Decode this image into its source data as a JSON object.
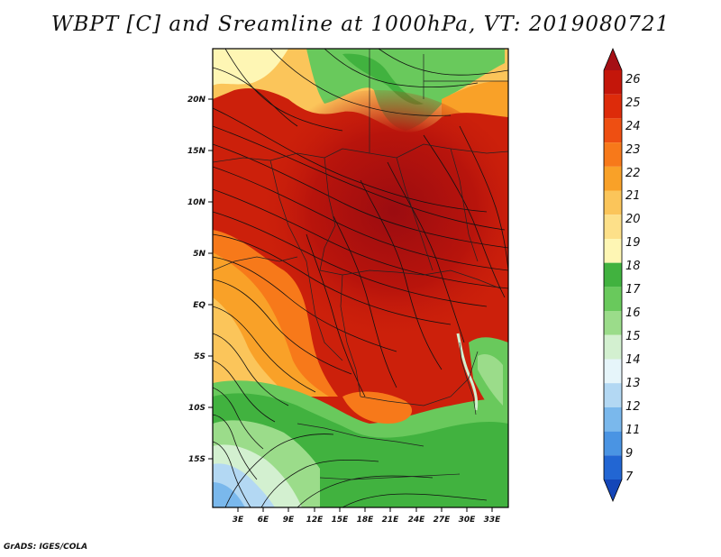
{
  "title": "WBPT [C] and Sreamline at 1000hPa, VT: 2019080721",
  "footer": "GrADS: IGES/COLA",
  "map": {
    "lat_labels": [
      "20N",
      "15N",
      "10N",
      "5N",
      "EQ",
      "5S",
      "10S",
      "15S"
    ],
    "lon_labels": [
      "3E",
      "6E",
      "9E",
      "12E",
      "15E",
      "18E",
      "21E",
      "24E",
      "27E",
      "30E",
      "33E"
    ]
  },
  "colorbar": {
    "labels": [
      "26",
      "25",
      "24",
      "23",
      "22",
      "21",
      "20",
      "19",
      "18",
      "17",
      "16",
      "15",
      "14",
      "13",
      "12",
      "11",
      "9",
      "7"
    ],
    "colors": [
      "#a50f15",
      "#c4160a",
      "#dd2b0a",
      "#ee4f12",
      "#f7791a",
      "#f9a128",
      "#fbc55a",
      "#fde089",
      "#fef6b4",
      "#41b23f",
      "#69c95c",
      "#9bdc8a",
      "#d3f0d0",
      "#e6f5fa",
      "#b3d8f3",
      "#7ab8ec",
      "#4a94e3",
      "#2266d3",
      "#1446b8"
    ]
  }
}
